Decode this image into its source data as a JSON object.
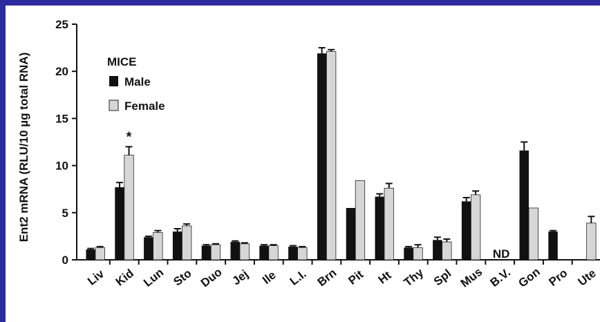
{
  "chart_data": {
    "type": "bar",
    "ylabel": "Ent2 mRNA (RLU/10 µg total RNA)",
    "ylim": [
      0,
      25
    ],
    "yticks": [
      0,
      5,
      10,
      15,
      20,
      25
    ],
    "grid": false,
    "legend_title": "MICE",
    "legend_position": "top-left",
    "categories": [
      "Liv",
      "Kid",
      "Lun",
      "Sto",
      "Duo",
      "Jej",
      "Ile",
      "L.I.",
      "Brn",
      "Pit",
      "Ht",
      "Thy",
      "Spl",
      "Mus",
      "B.V.",
      "Gon",
      "Pro",
      "Ute"
    ],
    "series": [
      {
        "name": "Male",
        "color": "#111111",
        "values": [
          1.1,
          7.7,
          2.4,
          3.0,
          1.5,
          1.9,
          1.5,
          1.4,
          21.9,
          5.5,
          6.7,
          1.3,
          2.1,
          6.2,
          null,
          11.6,
          3.0,
          null
        ],
        "errors": [
          0.1,
          0.5,
          0.1,
          0.3,
          0.1,
          0.1,
          0.1,
          0.1,
          0.6,
          0.0,
          0.3,
          0.1,
          0.3,
          0.4,
          null,
          0.9,
          0.1,
          null
        ]
      },
      {
        "name": "Female",
        "color": "#d6d6d6",
        "values": [
          1.3,
          11.1,
          2.9,
          3.6,
          1.6,
          1.7,
          1.5,
          1.3,
          22.1,
          8.4,
          7.6,
          1.3,
          1.9,
          6.9,
          null,
          5.5,
          null,
          3.9
        ],
        "errors": [
          0.1,
          0.9,
          0.2,
          0.2,
          0.1,
          0.1,
          0.1,
          0.1,
          0.2,
          0.0,
          0.5,
          0.3,
          0.3,
          0.4,
          null,
          0.0,
          null,
          0.7
        ]
      }
    ],
    "annotations": [
      {
        "text": "*",
        "category": "Kid",
        "series": "Female"
      },
      {
        "text": "ND",
        "category": "B.V."
      }
    ]
  }
}
